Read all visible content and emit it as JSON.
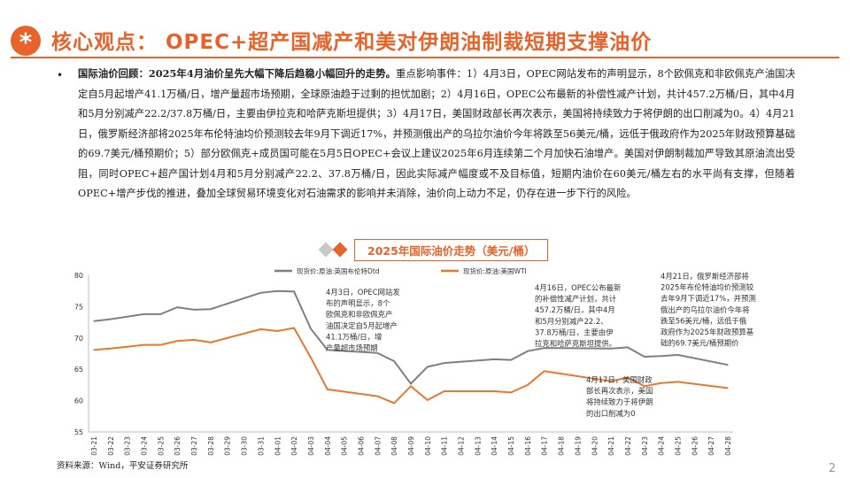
{
  "header": {
    "icon": "asterisk-icon",
    "title": "核心观点： OPEC+超产国减产和美对伊朗油制裁短期支撑油价"
  },
  "body": {
    "lead": "国际油价回顾：2025年4月油价呈先大幅下降后趋稳小幅回升的走势。",
    "text": "重点影响事件：1）4月3日，OPEC网站发布的声明显示，8个欧佩克和非欧佩克产油国决定自5月起增产41.1万桶/日，增产量超市场预期，全球原油趋于过剩的担忧加剧；2）4月16日，OPEC公布最新的补偿性减产计划，共计457.2万桶/日，其中4月和5月分别减产22.2/37.8万桶/日，主要由伊拉克和哈萨克斯坦提供；3）4月17日，美国财政部长再次表示，美国将持续致力于将伊朗的出口削减为0。4）4月21日，俄罗斯经济部将2025年布伦特油均价预测较去年9月下调近17%，并预测俄出产的乌拉尔油价今年将跌至56美元/桶，远低于俄政府作为2025年财政预算基础的69.7美元/桶预期价；5）部分欧佩克+成员国可能在5月5日OPEC+会议上建议2025年6月连续第二个月加快石油增产。美国对伊朗制裁加严导致其原油流出受阻，同时OPEC+超产国计划4月和5月分别减产22.2、37.8万桶/日，因此实际减产幅度或不及目标值，短期内油价在60美元/桶左右的水平尚有支撑，但随着OPEC+增产步伐的推进，叠加全球贸易环境变化对石油需求的影响并未消除，油价向上动力不足，仍存在进一步下行的风险。"
  },
  "chart_banner": {
    "title": "2025年国际油价走势（美元/桶）",
    "diamond_colors": [
      "#c8c8c8",
      "#e8632a"
    ]
  },
  "chart_data": {
    "type": "line",
    "title": "2025年国际油价走势（美元/桶）",
    "x": [
      "03-21",
      "03-22",
      "03-23",
      "03-24",
      "03-25",
      "03-26",
      "03-27",
      "03-28",
      "03-29",
      "03-30",
      "03-31",
      "04-01",
      "04-02",
      "04-03",
      "04-04",
      "04-05",
      "04-06",
      "04-07",
      "04-08",
      "04-09",
      "04-10",
      "04-11",
      "04-12",
      "04-13",
      "04-14",
      "04-15",
      "04-16",
      "04-17",
      "04-18",
      "04-19",
      "04-20",
      "04-21",
      "04-22",
      "04-23",
      "04-24",
      "04-25",
      "04-26",
      "04-27",
      "04-28"
    ],
    "ylim": [
      55,
      80
    ],
    "yticks": [
      "55",
      "60",
      "65",
      "70",
      "75",
      "80"
    ],
    "series": [
      {
        "name": "现货价:原油:英国布伦特Dtd",
        "color": "#7f7f7f",
        "values": [
          72.7,
          73.0,
          73.4,
          73.8,
          73.8,
          74.9,
          74.5,
          74.6,
          null,
          null,
          77.2,
          77.5,
          77.4,
          71.5,
          68.1,
          null,
          null,
          67.6,
          66.3,
          62.7,
          65.4,
          66.0,
          null,
          null,
          66.6,
          66.5,
          67.9,
          68.4,
          null,
          null,
          null,
          68.3,
          68.5,
          67.0,
          67.1,
          67.3,
          null,
          null,
          65.7
        ]
      },
      {
        "name": "现货价:原油:美国WTI",
        "color": "#e8782d",
        "values": [
          68.1,
          68.3,
          68.6,
          68.9,
          68.9,
          69.5,
          69.7,
          69.3,
          null,
          null,
          71.4,
          71.1,
          71.6,
          66.9,
          61.8,
          null,
          null,
          60.7,
          59.6,
          62.3,
          60.1,
          61.5,
          null,
          null,
          61.5,
          61.3,
          62.5,
          64.7,
          null,
          null,
          null,
          63.1,
          63.7,
          62.3,
          62.8,
          63.0,
          null,
          null,
          62.0
        ]
      }
    ],
    "grid": false,
    "legend": "top"
  },
  "annotations": [
    "4月3日，OPEC网站发\n布的声明显示，8个\n欧佩克和非欧佩克产\n油国决定自5月起增产\n41.1万桶/日，增\n产量超市场预期",
    "4月16日，OPEC公布最新\n的补偿性减产计划，共计\n457.2万桶/日，其中4月\n和5月分别减产22.2、\n37.8万桶/日，主要由伊\n拉克和哈萨克斯坦提供。",
    "4月17日，美国财政\n部长再次表示，美国\n将持续致力于将伊朗\n的出口削减为0",
    "4月21日，俄罗斯经济部将\n2025年布伦特油均价预测较\n去年9月下调近17%，并预测\n俄出产的乌拉尔油价今年将\n跌至56美元/桶，远低于俄\n政府作为2025年财政预算基\n础的69.7美元/桶预期价"
  ],
  "footer": {
    "source": "资料来源：Wind，平安证券研究所",
    "page_number": "2"
  }
}
